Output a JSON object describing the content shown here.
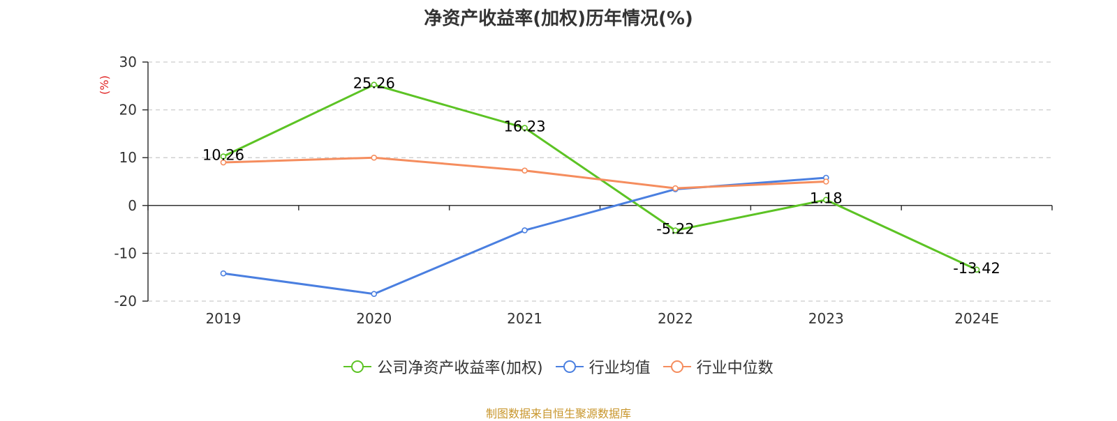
{
  "chart_data": {
    "type": "line",
    "title": "净资产收益率(加权)历年情况(%)",
    "ylabel": "(%)",
    "categories": [
      "2019",
      "2020",
      "2021",
      "2022",
      "2023",
      "2024E"
    ],
    "ylim": [
      -20,
      30
    ],
    "yticks": [
      30,
      20,
      10,
      0,
      -10,
      -20
    ],
    "grid": true,
    "legend_position": "bottom",
    "series": [
      {
        "name": "公司净资产收益率(加权)",
        "color": "#5cc324",
        "values": [
          10.26,
          25.26,
          16.23,
          -5.22,
          1.18,
          -13.42
        ],
        "labels": [
          "10.26",
          "25.26",
          "16.23",
          "-5.22",
          "1.18",
          "-13.42"
        ]
      },
      {
        "name": "行业均值",
        "color": "#4a7fe0",
        "values": [
          -14.2,
          -18.5,
          -5.2,
          3.4,
          5.8,
          null
        ]
      },
      {
        "name": "行业中位数",
        "color": "#f58d5e",
        "values": [
          9.0,
          10.0,
          7.3,
          3.6,
          5.0,
          null
        ]
      }
    ]
  },
  "source_text": "制图数据来自恒生聚源数据库",
  "colors": {
    "ylabel": "#e02020",
    "source": "#c8962c",
    "grid": "#cccccc",
    "axis": "#333333"
  }
}
